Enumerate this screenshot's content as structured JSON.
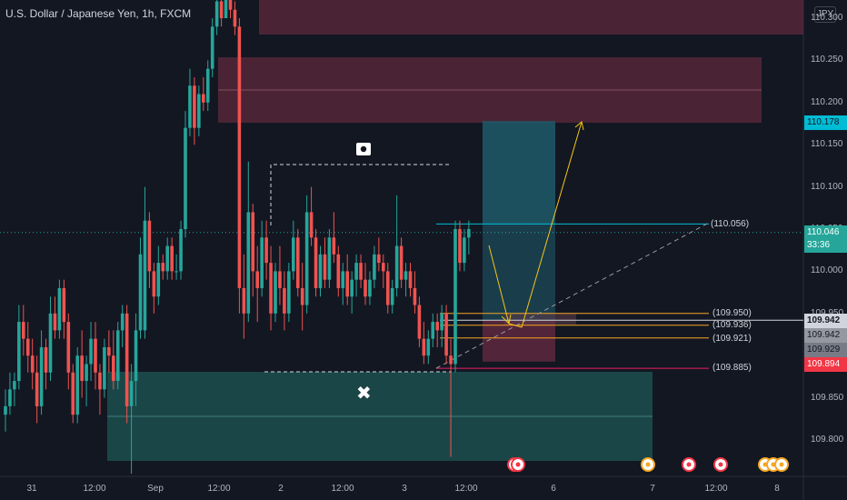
{
  "title": "U.S. Dollar / Japanese Yen, 1h, FXCM",
  "currency": "JPY",
  "price_axis": {
    "ticks": [
      "110.300",
      "110.250",
      "110.200",
      "110.150",
      "110.100",
      "110.050",
      "110.000",
      "109.950",
      "109.900",
      "109.850",
      "109.800"
    ],
    "tick_values": [
      110.3,
      110.25,
      110.2,
      110.15,
      110.1,
      110.05,
      110.0,
      109.95,
      109.9,
      109.85,
      109.8
    ]
  },
  "time_axis": {
    "labels": [
      "31",
      "12:00",
      "Sep",
      "12:00",
      "2",
      "12:00",
      "3",
      "12:00",
      "6",
      "7",
      "12:00",
      "8"
    ]
  },
  "badges": {
    "target": {
      "text": "110.178",
      "color": "#00bcd4"
    },
    "last_price": {
      "text": "110.046",
      "color": "#26a69a"
    },
    "countdown": {
      "text": "33:36",
      "color": "#26a69a"
    },
    "level1": {
      "text": "109.942",
      "color": "#b2b5be"
    },
    "level2": {
      "text": "109.942",
      "color": "#b2b5be"
    },
    "level3": {
      "text": "109.929",
      "color": "#b2b5be"
    },
    "stop": {
      "text": "109.894",
      "color": "#f23645"
    }
  },
  "levels": [
    {
      "text": "(110.056)",
      "color": "#00bcd4"
    },
    {
      "text": "(109.950)",
      "color": "#f5a623"
    },
    {
      "text": "(109.936)",
      "color": "#f5a623"
    },
    {
      "text": "(109.921)",
      "color": "#f5a623"
    },
    {
      "text": "(109.885)",
      "color": "#e91e63"
    }
  ],
  "markers": {
    "x_mark": "✖"
  },
  "colors": {
    "up": "#26a69a",
    "down": "#ef5350",
    "background": "#131722",
    "supply": "#5d2a3c",
    "demand": "#1d4b4b",
    "long_target": "#1e5a6a",
    "long_stop": "#5a2238"
  },
  "chart_data": {
    "type": "candlestick",
    "title": "U.S. Dollar / Japanese Yen, 1h, FXCM",
    "ylim": [
      109.76,
      110.33
    ],
    "ohlc": [
      [
        109.83,
        109.86,
        109.81,
        109.84
      ],
      [
        109.84,
        109.88,
        109.83,
        109.86
      ],
      [
        109.86,
        109.88,
        109.84,
        109.87
      ],
      [
        109.87,
        109.96,
        109.86,
        109.94
      ],
      [
        109.94,
        109.96,
        109.9,
        109.92
      ],
      [
        109.92,
        109.94,
        109.88,
        109.9
      ],
      [
        109.9,
        109.92,
        109.86,
        109.88
      ],
      [
        109.88,
        109.9,
        109.82,
        109.84
      ],
      [
        109.84,
        109.93,
        109.83,
        109.91
      ],
      [
        109.91,
        109.92,
        109.86,
        109.88
      ],
      [
        109.88,
        109.97,
        109.87,
        109.95
      ],
      [
        109.95,
        109.97,
        109.92,
        109.93
      ],
      [
        109.93,
        109.99,
        109.92,
        109.98
      ],
      [
        109.98,
        109.99,
        109.92,
        109.94
      ],
      [
        109.94,
        109.95,
        109.86,
        109.88
      ],
      [
        109.88,
        109.89,
        109.82,
        109.83
      ],
      [
        109.83,
        109.91,
        109.82,
        109.9
      ],
      [
        109.9,
        109.93,
        109.85,
        109.87
      ],
      [
        109.87,
        109.9,
        109.84,
        109.89
      ],
      [
        109.89,
        109.94,
        109.87,
        109.92
      ],
      [
        109.92,
        109.94,
        109.86,
        109.88
      ],
      [
        109.88,
        109.89,
        109.83,
        109.86
      ],
      [
        109.86,
        109.92,
        109.85,
        109.91
      ],
      [
        109.91,
        109.93,
        109.88,
        109.9
      ],
      [
        109.9,
        109.93,
        109.86,
        109.87
      ],
      [
        109.87,
        109.94,
        109.86,
        109.93
      ],
      [
        109.93,
        109.96,
        109.91,
        109.95
      ],
      [
        109.95,
        109.96,
        109.82,
        109.84
      ],
      [
        109.84,
        109.89,
        109.76,
        109.87
      ],
      [
        109.87,
        109.95,
        109.84,
        109.93
      ],
      [
        109.93,
        110.04,
        109.92,
        110.02
      ],
      [
        109.93,
        110.1,
        109.92,
        110.06
      ],
      [
        110.06,
        110.07,
        109.98,
        110.0
      ],
      [
        110.0,
        110.01,
        109.95,
        109.97
      ],
      [
        109.97,
        110.03,
        109.96,
        110.01
      ],
      [
        110.01,
        110.02,
        109.99,
        110.0
      ],
      [
        110.0,
        110.04,
        109.99,
        110.03
      ],
      [
        110.03,
        110.04,
        109.99,
        110.0
      ],
      [
        110.0,
        110.02,
        109.99,
        110.0
      ],
      [
        110.0,
        110.06,
        109.99,
        110.05
      ],
      [
        110.05,
        110.19,
        110.04,
        110.17
      ],
      [
        110.17,
        110.24,
        110.16,
        110.22
      ],
      [
        110.22,
        110.23,
        110.15,
        110.17
      ],
      [
        110.17,
        110.22,
        110.16,
        110.21
      ],
      [
        110.21,
        110.23,
        110.19,
        110.2
      ],
      [
        110.2,
        110.25,
        110.19,
        110.24
      ],
      [
        110.24,
        110.3,
        110.23,
        110.29
      ],
      [
        110.29,
        110.33,
        110.28,
        110.32
      ],
      [
        110.32,
        110.33,
        110.29,
        110.3
      ],
      [
        110.3,
        110.33,
        110.3,
        110.33
      ],
      [
        110.33,
        110.33,
        110.3,
        110.31
      ],
      [
        110.31,
        110.32,
        110.28,
        110.29
      ],
      [
        110.29,
        110.3,
        109.95,
        109.98
      ],
      [
        109.98,
        110.02,
        109.92,
        109.95
      ],
      [
        109.95,
        110.13,
        109.94,
        110.07
      ],
      [
        110.07,
        110.08,
        109.97,
        110.0
      ],
      [
        110.0,
        110.03,
        109.94,
        109.98
      ],
      [
        109.98,
        110.06,
        109.97,
        110.04
      ],
      [
        110.04,
        110.06,
        109.99,
        110.01
      ],
      [
        110.01,
        110.03,
        109.93,
        109.95
      ],
      [
        109.95,
        110.01,
        109.94,
        110.0
      ],
      [
        110.0,
        110.03,
        109.96,
        109.98
      ],
      [
        109.98,
        110.0,
        109.93,
        109.95
      ],
      [
        109.95,
        110.01,
        109.94,
        110.0
      ],
      [
        110.0,
        110.06,
        109.99,
        110.04
      ],
      [
        110.04,
        110.05,
        109.97,
        109.98
      ],
      [
        109.98,
        110.01,
        109.93,
        109.96
      ],
      [
        109.96,
        110.09,
        109.95,
        110.07
      ],
      [
        110.07,
        110.1,
        110.03,
        110.04
      ],
      [
        110.04,
        110.05,
        109.97,
        109.98
      ],
      [
        109.98,
        110.03,
        109.97,
        110.02
      ],
      [
        110.02,
        110.04,
        109.98,
        109.99
      ],
      [
        109.99,
        110.05,
        109.98,
        110.04
      ],
      [
        110.04,
        110.07,
        110.01,
        110.02
      ],
      [
        110.02,
        110.03,
        109.97,
        109.98
      ],
      [
        109.98,
        110.01,
        109.96,
        110.0
      ],
      [
        110.0,
        110.02,
        109.96,
        109.97
      ],
      [
        109.97,
        110.0,
        109.95,
        109.99
      ],
      [
        109.99,
        110.02,
        109.97,
        110.01
      ],
      [
        110.01,
        110.02,
        109.98,
        109.99
      ],
      [
        109.99,
        110.01,
        109.96,
        109.97
      ],
      [
        109.97,
        110.0,
        109.96,
        109.99
      ],
      [
        109.99,
        110.03,
        109.98,
        110.02
      ],
      [
        110.02,
        110.04,
        110.0,
        110.01
      ],
      [
        110.01,
        110.02,
        109.98,
        110.0
      ],
      [
        110.0,
        110.01,
        109.95,
        109.96
      ],
      [
        109.96,
        109.99,
        109.95,
        109.98
      ],
      [
        109.98,
        110.09,
        109.97,
        110.03
      ],
      [
        110.03,
        110.04,
        109.98,
        109.99
      ],
      [
        109.99,
        110.01,
        109.97,
        110.0
      ],
      [
        110.0,
        110.01,
        109.97,
        109.98
      ],
      [
        109.98,
        110.0,
        109.95,
        109.96
      ],
      [
        109.96,
        109.97,
        109.91,
        109.92
      ],
      [
        109.92,
        109.94,
        109.89,
        109.9
      ],
      [
        109.9,
        109.93,
        109.89,
        109.92
      ],
      [
        109.92,
        109.95,
        109.91,
        109.94
      ],
      [
        109.94,
        109.95,
        109.91,
        109.93
      ],
      [
        109.93,
        109.96,
        109.91,
        109.95
      ],
      [
        109.95,
        109.96,
        109.89,
        109.9
      ],
      [
        109.9,
        109.92,
        109.78,
        109.89
      ],
      [
        109.89,
        110.06,
        109.88,
        110.05
      ],
      [
        110.05,
        110.06,
        110.0,
        110.01
      ],
      [
        110.01,
        110.05,
        110.0,
        110.04
      ],
      [
        110.04,
        110.06,
        110.02,
        110.05
      ]
    ],
    "annotations": {
      "long_entry": 110.056,
      "long_target": 110.178,
      "long_stop": 109.885,
      "fib_levels": [
        109.95,
        109.936,
        109.921
      ]
    }
  }
}
